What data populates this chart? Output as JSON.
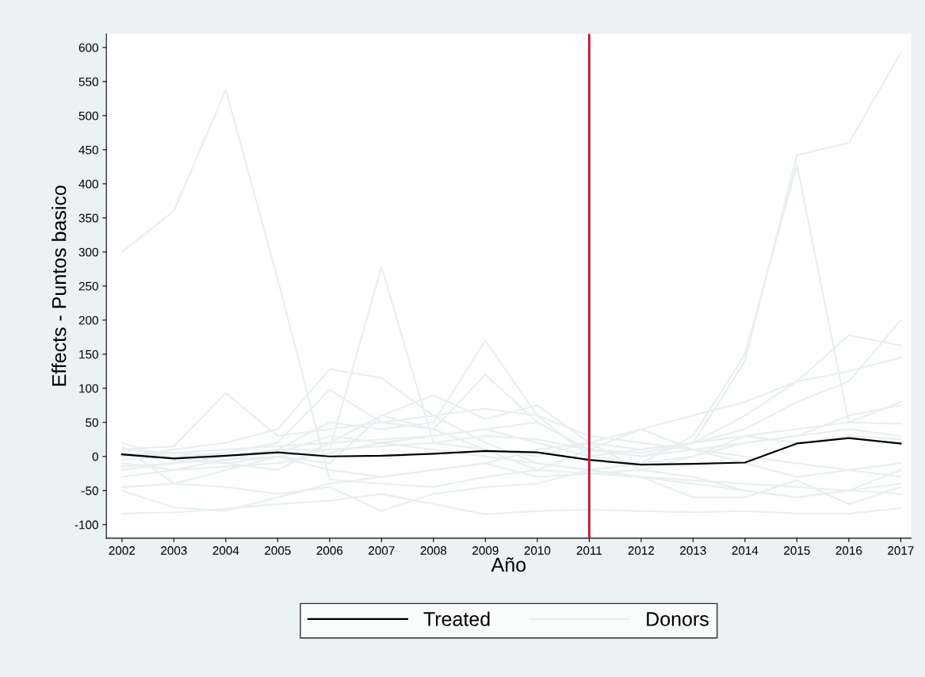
{
  "chart_data": {
    "type": "line",
    "xlabel": "Año",
    "ylabel": "Effects - Puntos basico",
    "x": [
      2002,
      2003,
      2004,
      2005,
      2006,
      2007,
      2008,
      2009,
      2010,
      2011,
      2012,
      2013,
      2014,
      2015,
      2016,
      2017
    ],
    "xlim": [
      2001.7,
      2017.2
    ],
    "xticks": [
      2002,
      2003,
      2004,
      2005,
      2006,
      2007,
      2008,
      2009,
      2010,
      2011,
      2012,
      2013,
      2014,
      2015,
      2016,
      2017
    ],
    "ylim": [
      -120,
      620
    ],
    "yticks": [
      -100,
      -50,
      0,
      50,
      100,
      150,
      200,
      250,
      300,
      350,
      400,
      450,
      500,
      550,
      600
    ],
    "series": [
      {
        "name": "Donors",
        "color": "#e8eff0",
        "values": [
          300,
          360,
          538,
          260,
          -34,
          -40,
          -45,
          -30,
          -20,
          -25,
          -30,
          -35,
          -40,
          -45,
          -50,
          -55
        ]
      },
      {
        "color": "#e8eff0",
        "values": [
          10,
          5,
          0,
          10,
          10,
          278,
          20,
          30,
          25,
          10,
          5,
          20,
          30,
          40,
          50,
          48
        ]
      },
      {
        "color": "#e8eff0",
        "values": [
          -10,
          -20,
          -5,
          10,
          50,
          40,
          50,
          170,
          60,
          0,
          -10,
          0,
          20,
          30,
          40,
          30
        ]
      },
      {
        "color": "#e8eff0",
        "values": [
          0,
          5,
          10,
          15,
          20,
          25,
          30,
          40,
          20,
          0,
          10,
          20,
          140,
          442,
          460,
          592
        ]
      },
      {
        "color": "#e8eff0",
        "values": [
          -20,
          -10,
          0,
          5,
          30,
          20,
          10,
          0,
          -10,
          -20,
          -10,
          30,
          150,
          428,
          50,
          80
        ]
      },
      {
        "color": "#e8eff0",
        "values": [
          20,
          -5,
          -10,
          0,
          -20,
          -30,
          -20,
          -10,
          10,
          20,
          10,
          20,
          60,
          110,
          178,
          163
        ]
      },
      {
        "color": "#e8eff0",
        "values": [
          -30,
          -20,
          -15,
          -10,
          5,
          20,
          30,
          40,
          50,
          10,
          0,
          20,
          40,
          80,
          110,
          200
        ]
      },
      {
        "color": "#e8eff0",
        "values": [
          -15,
          -10,
          -5,
          0,
          10,
          15,
          20,
          10,
          0,
          20,
          40,
          60,
          80,
          110,
          125,
          145
        ]
      },
      {
        "color": "#e8eff0",
        "values": [
          -84,
          -82,
          -77,
          -70,
          -65,
          -55,
          -70,
          -85,
          -80,
          -78,
          -80,
          -82,
          -80,
          -84,
          -84,
          -76
        ]
      },
      {
        "color": "#e8eff0",
        "values": [
          10,
          15,
          93,
          30,
          40,
          50,
          60,
          70,
          60,
          30,
          20,
          10,
          0,
          -10,
          -20,
          -30
        ]
      },
      {
        "color": "#e8eff0",
        "values": [
          0,
          10,
          20,
          40,
          128,
          115,
          60,
          20,
          -10,
          -20,
          -30,
          -40,
          -50,
          -60,
          -50,
          -40
        ]
      },
      {
        "color": "#e8eff0",
        "values": [
          -5,
          0,
          5,
          20,
          98,
          50,
          40,
          120,
          50,
          10,
          0,
          10,
          20,
          30,
          60,
          75
        ]
      },
      {
        "color": "#e8eff0",
        "values": [
          -50,
          -75,
          -80,
          -60,
          -40,
          -30,
          -20,
          -10,
          -30,
          -25,
          -20,
          -30,
          -50,
          -60,
          -50,
          -20
        ]
      },
      {
        "color": "#e8eff0",
        "values": [
          -45,
          -40,
          -45,
          -55,
          -45,
          -80,
          -55,
          -45,
          -40,
          -20,
          -30,
          -60,
          -60,
          -35,
          -70,
          -45
        ]
      },
      {
        "color": "#e8eff0",
        "values": [
          15,
          -40,
          -20,
          0,
          -10,
          60,
          40,
          10,
          -20,
          10,
          40,
          10,
          -10,
          -30,
          -20,
          -10
        ]
      },
      {
        "color": "#e8eff0",
        "values": [
          5,
          0,
          -10,
          -20,
          20,
          60,
          90,
          55,
          75,
          20,
          -20,
          0,
          30,
          20,
          30,
          25
        ]
      },
      {
        "name": "Treated",
        "color": "#000000",
        "values": [
          3,
          -3,
          1,
          6,
          0,
          1,
          4,
          8,
          6,
          -5,
          -12,
          -11,
          -9,
          19,
          27,
          19
        ]
      }
    ],
    "ref_lines": [
      {
        "axis": "x",
        "value": 2011,
        "color": "#c8102e",
        "line_style": "solid"
      }
    ],
    "grid": false,
    "legend": "bottom"
  }
}
